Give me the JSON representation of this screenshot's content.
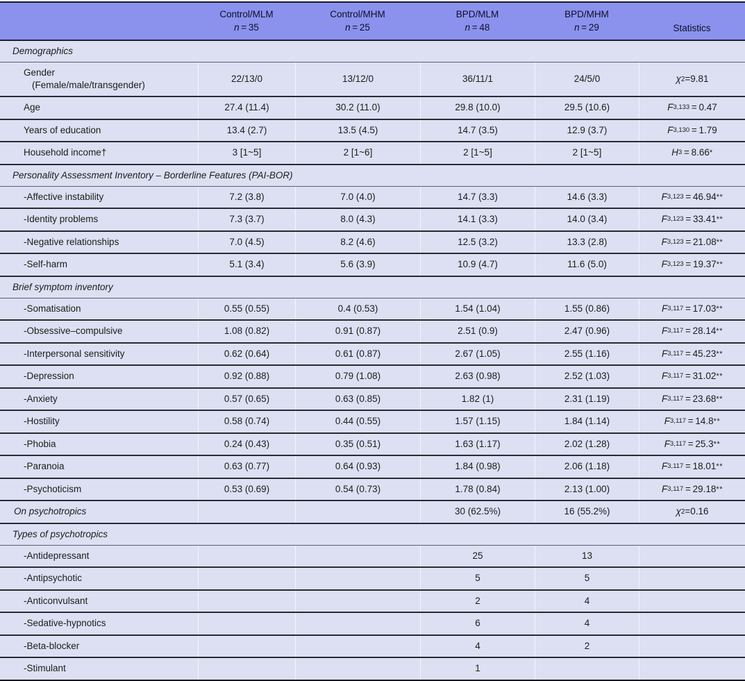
{
  "colors": {
    "header_bg": "#8b92ee",
    "row_bg": "#dce0f2",
    "rule_dark": "#2a2a33",
    "rule_section": "#5c5f6b",
    "border_outer": "#17171f"
  },
  "table": {
    "header": {
      "n_label": "n",
      "groups": [
        {
          "name": "Control/MLM",
          "n": "35"
        },
        {
          "name": "Control/MHM",
          "n": "25"
        },
        {
          "name": "BPD/MLM",
          "n": "48"
        },
        {
          "name": "BPD/MHM",
          "n": "29"
        }
      ],
      "stats_label": "Statistics"
    },
    "rows": [
      {
        "kind": "section",
        "label": "Demographics"
      },
      {
        "kind": "data",
        "label": "Gender",
        "label2": "(Female/male/transgender)",
        "tall": true,
        "values": [
          "22/13/0",
          "13/12/0",
          "36/11/1",
          "24/5/0"
        ],
        "stat": {
          "sym": "χ",
          "sup": "2",
          "rest": "=9.81"
        }
      },
      {
        "kind": "data",
        "label": "Age",
        "values": [
          "27.4 (11.4)",
          "30.2 (11.0)",
          "29.8 (10.0)",
          "29.5 (10.6)"
        ],
        "stat": {
          "sym": "F",
          "sub": "3,133",
          "rest": " = 0.47"
        }
      },
      {
        "kind": "data",
        "label": "Years of education",
        "values": [
          "13.4 (2.7)",
          "13.5 (4.5)",
          "14.7 (3.5)",
          "12.9 (3.7)"
        ],
        "stat": {
          "sym": "F",
          "sub": "3,130",
          "rest": " = 1.79"
        }
      },
      {
        "kind": "data",
        "label": "Household income†",
        "values": [
          "3 [1~5]",
          "2 [1~6]",
          "2 [1~5]",
          "2 [1~5]"
        ],
        "stat": {
          "sym": "H",
          "sub": "3",
          "rest": " = 8.66",
          "stars": "*"
        }
      },
      {
        "kind": "section",
        "label": "Personality Assessment Inventory – Borderline Features (PAI-BOR)"
      },
      {
        "kind": "data",
        "label": "-Affective instability",
        "values": [
          "7.2 (3.8)",
          "7.0 (4.0)",
          "14.7 (3.3)",
          "14.6 (3.3)"
        ],
        "stat": {
          "sym": "F",
          "sub": "3,123",
          "rest": " = 46.94",
          "stars": "**"
        }
      },
      {
        "kind": "data",
        "label": "-Identity problems",
        "values": [
          "7.3 (3.7)",
          "8.0 (4.3)",
          "14.1 (3.3)",
          "14.0 (3.4)"
        ],
        "stat": {
          "sym": "F",
          "sub": "3,123",
          "rest": " = 33.41",
          "stars": "**"
        }
      },
      {
        "kind": "data",
        "label": "-Negative relationships",
        "values": [
          "7.0 (4.5)",
          "8.2 (4.6)",
          "12.5 (3.2)",
          "13.3 (2.8)"
        ],
        "stat": {
          "sym": "F",
          "sub": "3,123",
          "rest": " = 21.08",
          "stars": "**"
        }
      },
      {
        "kind": "data",
        "label": "-Self-harm",
        "values": [
          "5.1 (3.4)",
          "5.6 (3.9)",
          "10.9 (4.7)",
          "11.6 (5.0)"
        ],
        "stat": {
          "sym": "F",
          "sub": "3,123",
          "rest": " = 19.37",
          "stars": "**"
        }
      },
      {
        "kind": "section",
        "label": "Brief symptom inventory"
      },
      {
        "kind": "data",
        "label": "-Somatisation",
        "values": [
          "0.55 (0.55)",
          "0.4 (0.53)",
          "1.54 (1.04)",
          "1.55 (0.86)"
        ],
        "stat": {
          "sym": "F",
          "sub": "3,117",
          "rest": " = 17.03",
          "stars": "**"
        }
      },
      {
        "kind": "data",
        "label": "-Obsessive–compulsive",
        "values": [
          "1.08 (0.82)",
          "0.91 (0.87)",
          "2.51 (0.9)",
          "2.47 (0.96)"
        ],
        "stat": {
          "sym": "F",
          "sub": "3,117",
          "rest": " = 28.14",
          "stars": "**"
        }
      },
      {
        "kind": "data",
        "label": "-Interpersonal sensitivity",
        "values": [
          "0.62 (0.64)",
          "0.61 (0.87)",
          "2.67 (1.05)",
          "2.55 (1.16)"
        ],
        "stat": {
          "sym": "F",
          "sub": "3,117",
          "rest": " = 45.23",
          "stars": "**"
        }
      },
      {
        "kind": "data",
        "label": "-Depression",
        "values": [
          "0.92 (0.88)",
          "0.79 (1.08)",
          "2.63 (0.98)",
          "2.52 (1.03)"
        ],
        "stat": {
          "sym": "F",
          "sub": "3,117",
          "rest": " = 31.02",
          "stars": "**"
        }
      },
      {
        "kind": "data",
        "label": "-Anxiety",
        "values": [
          "0.57 (0.65)",
          "0.63 (0.85)",
          "1.82 (1)",
          "2.31 (1.19)"
        ],
        "stat": {
          "sym": "F",
          "sub": "3,117",
          "rest": " = 23.68",
          "stars": "**"
        }
      },
      {
        "kind": "data",
        "label": "-Hostility",
        "values": [
          "0.58 (0.74)",
          "0.44 (0.55)",
          "1.57 (1.15)",
          "1.84 (1.14)"
        ],
        "stat": {
          "sym": "F",
          "sub": "3,117",
          "rest": " = 14.8",
          "stars": "**"
        }
      },
      {
        "kind": "data",
        "label": "-Phobia",
        "values": [
          "0.24 (0.43)",
          "0.35 (0.51)",
          "1.63 (1.17)",
          "2.02 (1.28)"
        ],
        "stat": {
          "sym": "F",
          "sub": "3,117",
          "rest": " = 25.3",
          "stars": "**"
        }
      },
      {
        "kind": "data",
        "label": "-Paranoia",
        "values": [
          "0.63 (0.77)",
          "0.64 (0.93)",
          "1.84 (0.98)",
          "2.06 (1.18)"
        ],
        "stat": {
          "sym": "F",
          "sub": "3,117",
          "rest": " = 18.01",
          "stars": "**"
        }
      },
      {
        "kind": "data",
        "label": "-Psychoticism",
        "values": [
          "0.53 (0.69)",
          "0.54 (0.73)",
          "1.78 (0.84)",
          "2.13 (1.00)"
        ],
        "stat": {
          "sym": "F",
          "sub": "3,117",
          "rest": " = 29.18",
          "stars": "**"
        }
      },
      {
        "kind": "data",
        "label": "On psychotropics",
        "labelStyle": "italic",
        "values": [
          "",
          "",
          "30 (62.5%)",
          "16 (55.2%)"
        ],
        "stat": {
          "sym": "χ",
          "sup": "2",
          "rest": "=0.16"
        }
      },
      {
        "kind": "section",
        "label": "Types of psychotropics"
      },
      {
        "kind": "data",
        "label": "-Antidepressant",
        "values": [
          "",
          "",
          "25",
          "13"
        ]
      },
      {
        "kind": "data",
        "label": "-Antipsychotic",
        "values": [
          "",
          "",
          "5",
          "5"
        ]
      },
      {
        "kind": "data",
        "label": "-Anticonvulsant",
        "values": [
          "",
          "",
          "2",
          "4"
        ]
      },
      {
        "kind": "data",
        "label": "-Sedative-hypnotics",
        "values": [
          "",
          "",
          "6",
          "4"
        ]
      },
      {
        "kind": "data",
        "label": "-Beta-blocker",
        "values": [
          "",
          "",
          "4",
          "2"
        ]
      },
      {
        "kind": "data",
        "label": "-Stimulant",
        "values": [
          "",
          "",
          "1",
          ""
        ]
      }
    ]
  }
}
